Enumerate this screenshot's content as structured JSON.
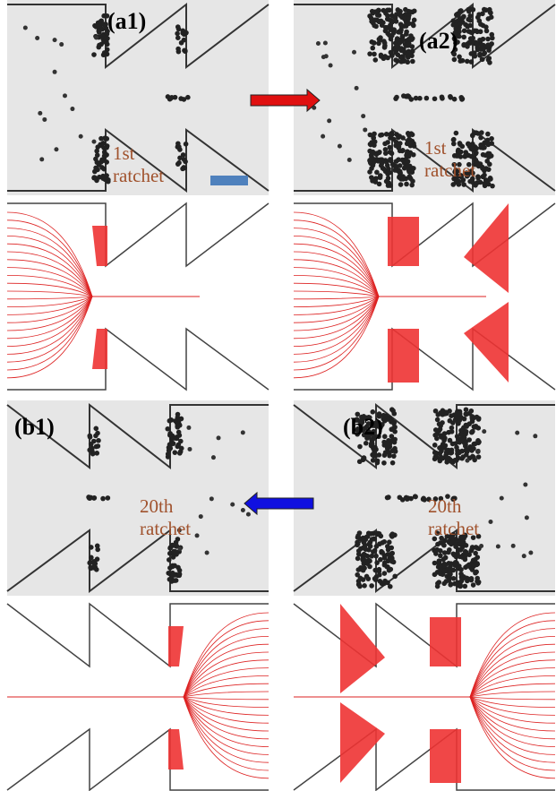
{
  "panels": [
    {
      "label": "(a1)",
      "annotation": [
        "1st",
        "ratchet"
      ]
    },
    {
      "label": "(a2)",
      "annotation": [
        "1st",
        "ratchet"
      ]
    },
    {
      "label": "(b1)",
      "annotation": [
        "20th",
        "ratchet"
      ]
    },
    {
      "label": "(b2)",
      "annotation": [
        "20th",
        "ratchet"
      ]
    }
  ]
}
